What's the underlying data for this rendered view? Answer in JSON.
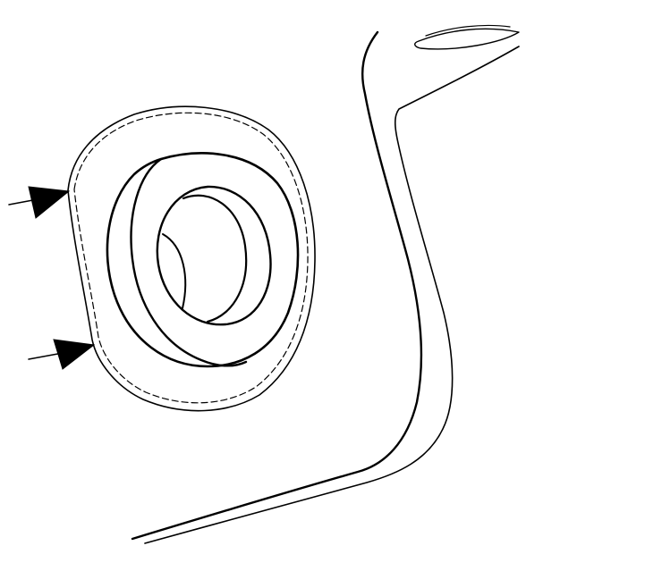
{
  "diagram": {
    "kind": "line-drawing",
    "background_color": "#ffffff",
    "ink_color": "#000000",
    "parts": [
      {
        "name": "outer-boss",
        "description_visible": false
      },
      {
        "name": "seal-ring",
        "description_visible": false
      },
      {
        "name": "bore",
        "description_visible": false
      },
      {
        "name": "panel-contour",
        "description_visible": false
      }
    ],
    "callouts": [
      {
        "name": "upper-arrow",
        "icon": "arrow-right-icon"
      },
      {
        "name": "lower-arrow",
        "icon": "arrow-right-icon"
      }
    ]
  }
}
